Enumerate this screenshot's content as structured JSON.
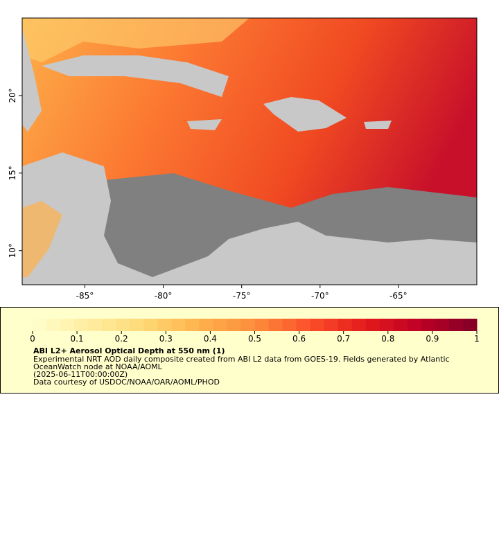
{
  "map": {
    "xlim": [
      -89,
      -60
    ],
    "ylim": [
      7.8,
      25
    ],
    "xticks": [
      {
        "value": -85,
        "label": "-85°"
      },
      {
        "value": -80,
        "label": "-80°"
      },
      {
        "value": -75,
        "label": "-75°"
      },
      {
        "value": -70,
        "label": "-70°"
      },
      {
        "value": -65,
        "label": "-65°"
      }
    ],
    "yticks": [
      {
        "value": 10,
        "label": "10°"
      },
      {
        "value": 15,
        "label": "15°"
      },
      {
        "value": 20,
        "label": "20°"
      }
    ]
  },
  "colorbar": {
    "lim": [
      0,
      1
    ],
    "ticks": [
      0,
      0.1,
      0.2,
      0.3,
      0.4,
      0.5,
      0.6,
      0.7,
      0.8,
      0.9,
      1
    ],
    "colors": [
      "#ffffcc",
      "#ffeda0",
      "#fed976",
      "#feb24c",
      "#fd8d3c",
      "#fc4e2a",
      "#e31a1c",
      "#bd0026",
      "#800026"
    ]
  },
  "legend": {
    "title": "ABI L2+ Aerosol Optical Depth at 550 nm (1)",
    "lines": [
      "Experimental NRT AOD daily composite created from ABI L2 data from GOES-19. Fields generated by Atlantic",
      "OceanWatch node at NOAA/AOML",
      "(2025-06-11T00:00:00Z)",
      "Data courtesy of USDOC/NOAA/OAR/AOML/PHOD"
    ]
  }
}
